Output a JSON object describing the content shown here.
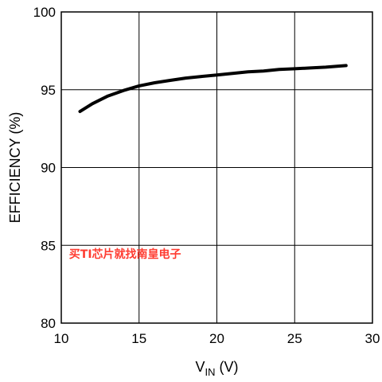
{
  "chart_data": {
    "type": "line",
    "xlabel": {
      "main": "V",
      "sub": "IN",
      "unit": " (V)"
    },
    "ylabel": "EFFICIENCY (%)",
    "xlim": [
      10,
      30
    ],
    "ylim": [
      80,
      100
    ],
    "x_ticks": [
      10,
      15,
      20,
      25,
      30
    ],
    "y_ticks": [
      80,
      85,
      90,
      95,
      100
    ],
    "grid": true,
    "series": [
      {
        "color": "#000000",
        "points": [
          {
            "x": 11.2,
            "y": 93.6
          },
          {
            "x": 12.0,
            "y": 94.1
          },
          {
            "x": 13.0,
            "y": 94.6
          },
          {
            "x": 14.0,
            "y": 94.95
          },
          {
            "x": 15.0,
            "y": 95.25
          },
          {
            "x": 16.0,
            "y": 95.45
          },
          {
            "x": 17.0,
            "y": 95.6
          },
          {
            "x": 18.0,
            "y": 95.75
          },
          {
            "x": 19.0,
            "y": 95.85
          },
          {
            "x": 20.0,
            "y": 95.95
          },
          {
            "x": 21.0,
            "y": 96.05
          },
          {
            "x": 22.0,
            "y": 96.15
          },
          {
            "x": 23.0,
            "y": 96.2
          },
          {
            "x": 24.0,
            "y": 96.3
          },
          {
            "x": 25.0,
            "y": 96.35
          },
          {
            "x": 26.0,
            "y": 96.4
          },
          {
            "x": 27.0,
            "y": 96.45
          },
          {
            "x": 28.3,
            "y": 96.55
          }
        ]
      }
    ]
  },
  "watermark": {
    "text": "买TI芯片就找南皇电子",
    "color": "#ff3b30",
    "x": 10.5,
    "y": 84.2
  }
}
